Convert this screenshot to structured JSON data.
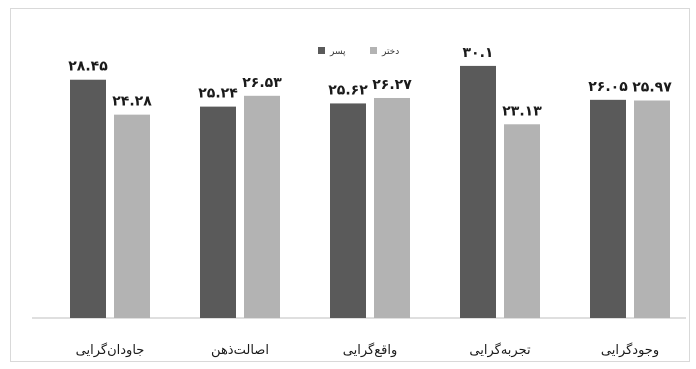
{
  "chart_data": {
    "type": "bar",
    "categories": [
      "جاودان‌گرایی",
      "اصالت‌ذهن",
      "واقع‌گرایی",
      "تجربه‌گرایی",
      "وجودگرایی"
    ],
    "series": [
      {
        "name": "پسر",
        "color": "#5a5a5a",
        "values": [
          28.45,
          25.24,
          25.62,
          30.1,
          26.05
        ],
        "labels": [
          "۲۸.۴۵",
          "۲۵.۲۴",
          "۲۵.۶۲",
          "۳۰.۱",
          "۲۶.۰۵"
        ]
      },
      {
        "name": "دختر",
        "color": "#b3b3b3",
        "values": [
          24.28,
          26.53,
          26.27,
          23.13,
          25.97
        ],
        "labels": [
          "۲۴.۲۸",
          "۲۶.۵۳",
          "۲۶.۲۷",
          "۲۳.۱۳",
          "۲۵.۹۷"
        ]
      }
    ],
    "ylim": [
      0,
      32
    ],
    "grid": false,
    "legend_position": "top-center"
  }
}
